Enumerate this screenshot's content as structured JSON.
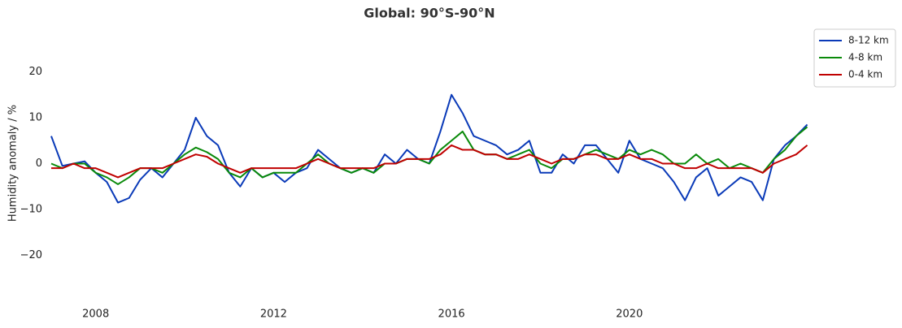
{
  "chart_data": {
    "type": "line",
    "title": "Global: 90°S-90°N",
    "y_label": "Humidity anomaly / %",
    "x": [
      2007,
      2007.25,
      2007.5,
      2007.75,
      2008,
      2008.25,
      2008.5,
      2008.75,
      2009,
      2009.25,
      2009.5,
      2009.75,
      2010,
      2010.25,
      2010.5,
      2010.75,
      2011,
      2011.25,
      2011.5,
      2011.75,
      2012,
      2012.25,
      2012.5,
      2012.75,
      2013,
      2013.25,
      2013.5,
      2013.75,
      2014,
      2014.25,
      2014.5,
      2014.75,
      2015,
      2015.25,
      2015.5,
      2015.75,
      2016,
      2016.25,
      2016.5,
      2016.75,
      2017,
      2017.25,
      2017.5,
      2017.75,
      2018,
      2018.25,
      2018.5,
      2018.75,
      2019,
      2019.25,
      2019.5,
      2019.75,
      2020,
      2020.25,
      2020.5,
      2020.75,
      2021,
      2021.25,
      2021.5,
      2021.75,
      2022,
      2022.25,
      2022.5,
      2022.75,
      2023,
      2023.25,
      2023.5,
      2023.75,
      2024
    ],
    "xlim": [
      2007,
      2024.1
    ],
    "xticks": [
      2008,
      2012,
      2016,
      2020
    ],
    "ylim": [
      -30,
      30
    ],
    "yticks": [
      {
        "value": -20,
        "label": "−20"
      },
      {
        "value": -10,
        "label": "−10"
      },
      0,
      10,
      20
    ],
    "grid": false,
    "legend": "upper right",
    "series": [
      {
        "name": "8-12 km",
        "color": "#0a3ab8",
        "values": [
          6,
          -0.5,
          0,
          0.5,
          -2,
          -4,
          -8.5,
          -7.5,
          -3.5,
          -1,
          -3,
          0,
          3,
          10,
          6,
          4,
          -2,
          -5,
          -1,
          -3,
          -2,
          -4,
          -2,
          -1,
          3,
          1,
          -1,
          -2,
          -1,
          -2,
          2,
          0,
          3,
          1,
          0,
          7,
          15,
          11,
          6,
          5,
          4,
          2,
          3,
          5,
          -2,
          -2,
          2,
          0,
          4,
          4,
          1,
          -2,
          5,
          1,
          0,
          -1,
          -4,
          -8,
          -3,
          -1,
          -7,
          -5,
          -3,
          -4,
          -8,
          1,
          4,
          6,
          8.5
        ]
      },
      {
        "name": "4-8 km",
        "color": "#0a8a0a",
        "values": [
          0,
          -1,
          0,
          0,
          -2,
          -3,
          -4.5,
          -3,
          -1,
          -1,
          -2,
          0,
          2,
          3.5,
          2.5,
          1,
          -2,
          -3,
          -1,
          -3,
          -2,
          -2,
          -2,
          0,
          2,
          0,
          -1,
          -2,
          -1,
          -2,
          0,
          0,
          1,
          1,
          0,
          3,
          5,
          7,
          3,
          2,
          2,
          1,
          2,
          3,
          0,
          -1,
          1,
          1,
          2,
          3,
          2,
          1,
          3,
          2,
          3,
          2,
          0,
          0,
          2,
          0,
          1,
          -1,
          0,
          -1,
          -2,
          1,
          3,
          6,
          8
        ]
      },
      {
        "name": "0-4 km",
        "color": "#c00000",
        "values": [
          -1,
          -1,
          0,
          -1,
          -1,
          -2,
          -3,
          -2,
          -1,
          -1,
          -1,
          0,
          1,
          2,
          1.5,
          0,
          -1,
          -2,
          -1,
          -1,
          -1,
          -1,
          -1,
          0,
          1,
          0,
          -1,
          -1,
          -1,
          -1,
          0,
          0,
          1,
          1,
          1,
          2,
          4,
          3,
          3,
          2,
          2,
          1,
          1,
          2,
          1,
          0,
          1,
          1,
          2,
          2,
          1,
          1,
          2,
          1,
          1,
          0,
          0,
          -1,
          -1,
          0,
          -1,
          -1,
          -1,
          -1,
          -2,
          0,
          1,
          2,
          4
        ]
      }
    ]
  }
}
